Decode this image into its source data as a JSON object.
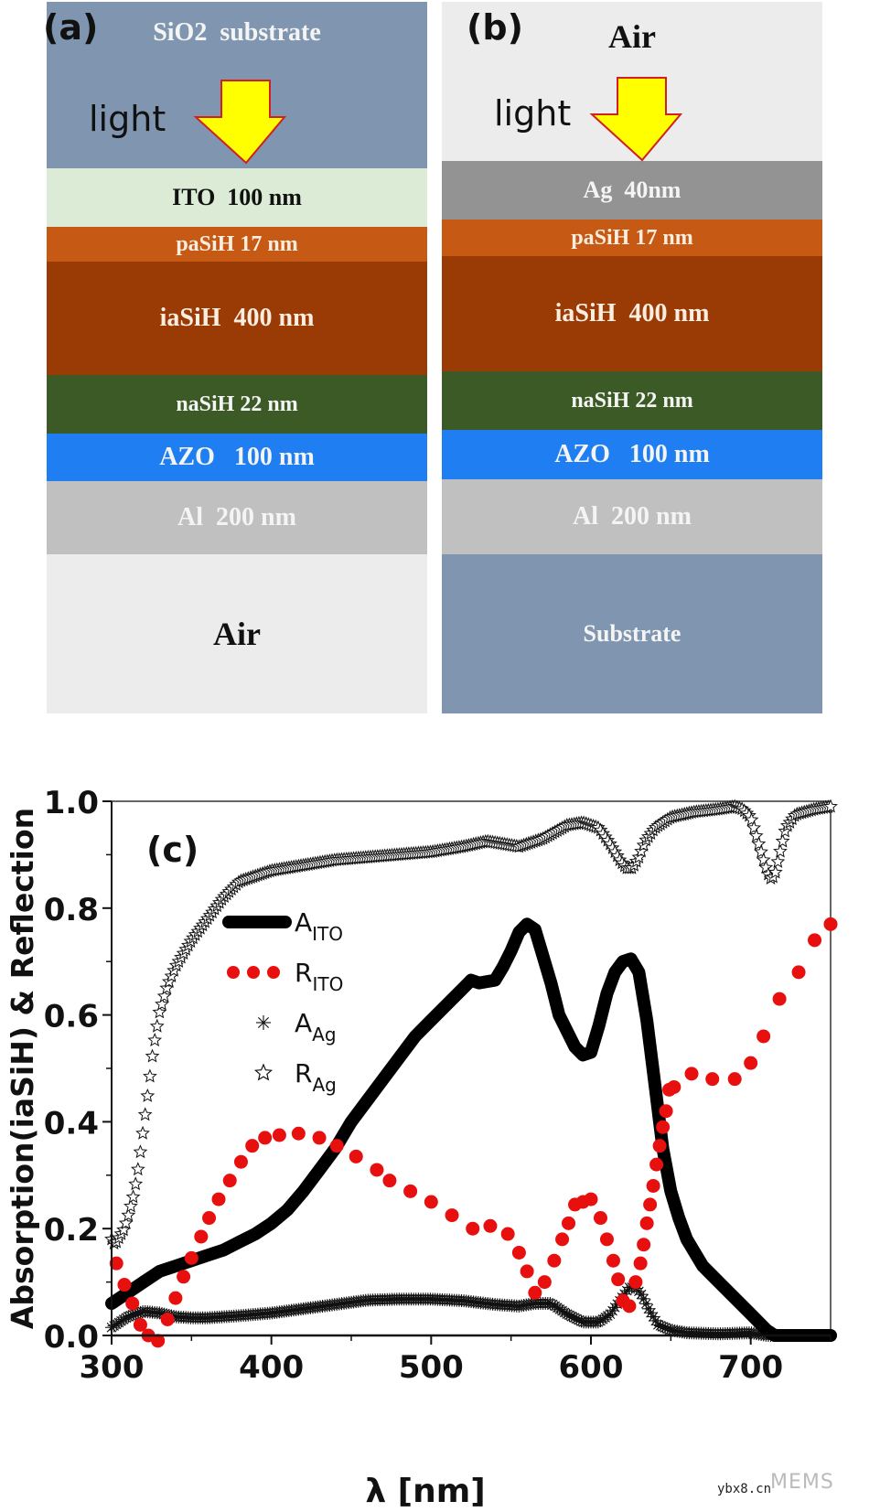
{
  "panel_a": {
    "label": "(a)",
    "light_label": "light",
    "layers": [
      {
        "name": "SiO2  substrate",
        "color": "#8096b0",
        "text_color": "#f4f4f4"
      },
      {
        "name": "ITO  100 nm",
        "color": "#dcebd6",
        "text_color": "#111111"
      },
      {
        "name": "paSiH 17 nm",
        "color": "#c65a14",
        "text_color": "#fbeee0"
      },
      {
        "name": "iaSiH  400 nm",
        "color": "#9a3a05",
        "text_color": "#fbeee0"
      },
      {
        "name": "naSiH 22 nm",
        "color": "#3b5a25",
        "text_color": "#f4f4f4"
      },
      {
        "name": "AZO   100 nm",
        "color": "#1f7ef2",
        "text_color": "#f4f4f4"
      },
      {
        "name": "Al  200 nm",
        "color": "#c0c0c0",
        "text_color": "#f4f4f4"
      },
      {
        "name": "Air",
        "color": "#ececec",
        "text_color": "#111111"
      }
    ]
  },
  "panel_b": {
    "label": "(b)",
    "light_label": "light",
    "layers": [
      {
        "name": "Air",
        "color": "#ececec",
        "text_color": "#111111"
      },
      {
        "name": "Ag  40nm",
        "color": "#939393",
        "text_color": "#f4f4f4"
      },
      {
        "name": "paSiH 17 nm",
        "color": "#c65a14",
        "text_color": "#fbeee0"
      },
      {
        "name": "iaSiH  400 nm",
        "color": "#9a3a05",
        "text_color": "#fbeee0"
      },
      {
        "name": "naSiH 22 nm",
        "color": "#3b5a25",
        "text_color": "#f4f4f4"
      },
      {
        "name": "AZO   100 nm",
        "color": "#1f7ef2",
        "text_color": "#f4f4f4"
      },
      {
        "name": "Al  200 nm",
        "color": "#c0c0c0",
        "text_color": "#f4f4f4"
      },
      {
        "name": "Substrate",
        "color": "#8096b0",
        "text_color": "#f4f4f4"
      }
    ]
  },
  "arrow_colors": {
    "fill": "#ffff00",
    "stroke": "#d02020"
  },
  "watermark": {
    "site": "ybx8.cn",
    "brand": "MEMS"
  },
  "chart_data": {
    "type": "scatter",
    "panel_label": "(c)",
    "title": "",
    "xlabel": "λ [nm]",
    "ylabel": "Absorption(iaSiH) & Reflection",
    "xlim": [
      300,
      750
    ],
    "ylim": [
      0.0,
      1.0
    ],
    "xticks": [
      300,
      400,
      500,
      600,
      700
    ],
    "yticks": [
      "0.0",
      "0.2",
      "0.4",
      "0.6",
      "0.8",
      "1.0"
    ],
    "grid": false,
    "legend_position": "center-left",
    "legend": [
      {
        "key": "A_ITO",
        "base": "A",
        "sub": "ITO",
        "style": "thick-line",
        "color": "#000000"
      },
      {
        "key": "R_ITO",
        "base": "R",
        "sub": "ITO",
        "style": "red-dots",
        "color": "#e80f0f"
      },
      {
        "key": "A_Ag",
        "base": "A",
        "sub": "Ag",
        "style": "asterisk",
        "color": "#000000"
      },
      {
        "key": "R_Ag",
        "base": "R",
        "sub": "Ag",
        "style": "star",
        "color": "#000000"
      }
    ],
    "series": [
      {
        "name": "A_ITO",
        "x": [
          300,
          310,
          320,
          330,
          340,
          350,
          360,
          370,
          380,
          390,
          400,
          410,
          420,
          430,
          440,
          450,
          460,
          470,
          480,
          490,
          500,
          510,
          520,
          525,
          530,
          540,
          545,
          550,
          555,
          560,
          565,
          570,
          575,
          580,
          590,
          595,
          600,
          605,
          610,
          615,
          620,
          625,
          630,
          635,
          640,
          645,
          650,
          655,
          660,
          670,
          680,
          690,
          700,
          710,
          715,
          720,
          730,
          740,
          750
        ],
        "y": [
          0.06,
          0.08,
          0.1,
          0.12,
          0.13,
          0.14,
          0.15,
          0.16,
          0.175,
          0.19,
          0.21,
          0.235,
          0.27,
          0.31,
          0.35,
          0.4,
          0.44,
          0.48,
          0.52,
          0.56,
          0.59,
          0.62,
          0.65,
          0.665,
          0.66,
          0.665,
          0.69,
          0.72,
          0.755,
          0.77,
          0.76,
          0.71,
          0.66,
          0.6,
          0.54,
          0.525,
          0.53,
          0.58,
          0.64,
          0.68,
          0.7,
          0.705,
          0.68,
          0.59,
          0.47,
          0.35,
          0.27,
          0.22,
          0.18,
          0.13,
          0.1,
          0.07,
          0.04,
          0.01,
          0.0,
          0.0,
          0.0,
          0.0,
          0.0
        ]
      },
      {
        "name": "R_ITO",
        "x": [
          303,
          308,
          313,
          318,
          323,
          329,
          335,
          340,
          345,
          350,
          356,
          361,
          367,
          374,
          381,
          388,
          396,
          405,
          417,
          430,
          441,
          453,
          466,
          474,
          487,
          500,
          513,
          526,
          537,
          548,
          555,
          560,
          565,
          571,
          577,
          582,
          586,
          590,
          595,
          600,
          606,
          610,
          614,
          617,
          620,
          624,
          628,
          631,
          633,
          635,
          637,
          639,
          641,
          643,
          645,
          647,
          649,
          652,
          663,
          676,
          690,
          700,
          708,
          718,
          730,
          740,
          750
        ],
        "y": [
          0.135,
          0.095,
          0.06,
          0.02,
          0.0,
          -0.01,
          0.03,
          0.07,
          0.11,
          0.145,
          0.185,
          0.22,
          0.255,
          0.29,
          0.325,
          0.355,
          0.37,
          0.375,
          0.378,
          0.37,
          0.355,
          0.335,
          0.31,
          0.29,
          0.27,
          0.25,
          0.225,
          0.2,
          0.205,
          0.19,
          0.155,
          0.12,
          0.08,
          0.1,
          0.14,
          0.18,
          0.21,
          0.245,
          0.25,
          0.255,
          0.22,
          0.18,
          0.14,
          0.105,
          0.065,
          0.055,
          0.1,
          0.135,
          0.17,
          0.21,
          0.245,
          0.28,
          0.32,
          0.355,
          0.39,
          0.42,
          0.46,
          0.465,
          0.49,
          0.48,
          0.48,
          0.51,
          0.56,
          0.63,
          0.68,
          0.74,
          0.77
        ]
      },
      {
        "name": "A_Ag",
        "x": [
          300,
          310,
          320,
          330,
          340,
          350,
          360,
          370,
          380,
          400,
          420,
          440,
          460,
          480,
          500,
          520,
          540,
          555,
          565,
          575,
          585,
          595,
          605,
          612,
          618,
          624,
          628,
          632,
          636,
          642,
          650,
          660,
          680,
          700,
          710,
          720,
          735,
          750
        ],
        "y": [
          0.015,
          0.035,
          0.045,
          0.042,
          0.035,
          0.033,
          0.033,
          0.035,
          0.037,
          0.042,
          0.05,
          0.058,
          0.066,
          0.068,
          0.068,
          0.065,
          0.058,
          0.055,
          0.06,
          0.06,
          0.04,
          0.025,
          0.025,
          0.04,
          0.065,
          0.09,
          0.09,
          0.075,
          0.05,
          0.02,
          0.01,
          0.005,
          0.003,
          0.005,
          0.0,
          0.0,
          0.0,
          0.0
        ]
      },
      {
        "name": "R_Ag",
        "x": [
          300,
          302,
          305,
          308,
          311,
          314,
          317,
          320,
          323,
          326,
          330,
          335,
          340,
          350,
          360,
          370,
          380,
          400,
          420,
          440,
          460,
          480,
          500,
          520,
          535,
          545,
          555,
          570,
          585,
          595,
          605,
          612,
          618,
          622,
          626,
          630,
          634,
          640,
          650,
          665,
          680,
          690,
          695,
          700,
          703,
          706,
          709,
          712,
          715,
          718,
          722,
          728,
          740,
          750
        ],
        "y": [
          0.18,
          0.17,
          0.185,
          0.2,
          0.23,
          0.265,
          0.32,
          0.39,
          0.46,
          0.535,
          0.605,
          0.655,
          0.69,
          0.74,
          0.78,
          0.82,
          0.85,
          0.87,
          0.88,
          0.89,
          0.895,
          0.9,
          0.905,
          0.915,
          0.925,
          0.92,
          0.915,
          0.93,
          0.955,
          0.96,
          0.95,
          0.92,
          0.89,
          0.875,
          0.875,
          0.895,
          0.925,
          0.95,
          0.97,
          0.98,
          0.985,
          0.99,
          0.985,
          0.97,
          0.94,
          0.91,
          0.88,
          0.855,
          0.86,
          0.9,
          0.95,
          0.975,
          0.985,
          0.99
        ]
      }
    ]
  }
}
